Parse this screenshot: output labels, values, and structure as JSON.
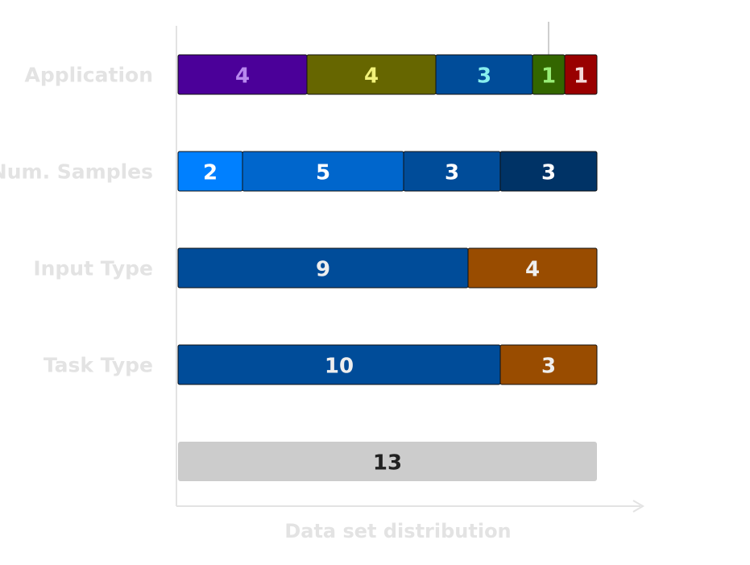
{
  "chart_data": {
    "type": "bar",
    "orientation": "horizontal",
    "stacked": true,
    "xlabel": "Data set distribution",
    "xlim": [
      0,
      13
    ],
    "grid": false,
    "legend": "none",
    "rows": [
      {
        "label": "Application",
        "segments": [
          {
            "value": 4,
            "color": "#4b0099",
            "text_color": "#b888ee"
          },
          {
            "value": 4,
            "color": "#666600",
            "text_color": "#f2f27a"
          },
          {
            "value": 3,
            "color": "#004c99",
            "text_color": "#88eeee"
          },
          {
            "value": 1,
            "color": "#336600",
            "text_color": "#99ee77"
          },
          {
            "value": 1,
            "color": "#990000",
            "text_color": "#f4dada"
          }
        ]
      },
      {
        "label": "Num. Samples",
        "segments": [
          {
            "value": 2,
            "color": "#0080ff",
            "text_color": "#ffffff"
          },
          {
            "value": 5,
            "color": "#0066cc",
            "text_color": "#ffffff"
          },
          {
            "value": 3,
            "color": "#004c99",
            "text_color": "#ffffff"
          },
          {
            "value": 3,
            "color": "#003366",
            "text_color": "#ffffff"
          }
        ]
      },
      {
        "label": "Input Type",
        "segments": [
          {
            "value": 9,
            "color": "#004c99",
            "text_color": "#eeeeee"
          },
          {
            "value": 4,
            "color": "#994c00",
            "text_color": "#eeeeee"
          }
        ]
      },
      {
        "label": "Task Type",
        "segments": [
          {
            "value": 10,
            "color": "#004c99",
            "text_color": "#eeeeee"
          },
          {
            "value": 3,
            "color": "#994c00",
            "text_color": "#eeeeee"
          }
        ]
      },
      {
        "label": "",
        "segments": [
          {
            "value": 13,
            "color": "#cccccc",
            "text_color": "#222222"
          }
        ]
      }
    ],
    "axis_color": "#e3e3e3",
    "marker_line_at": 11.5
  }
}
